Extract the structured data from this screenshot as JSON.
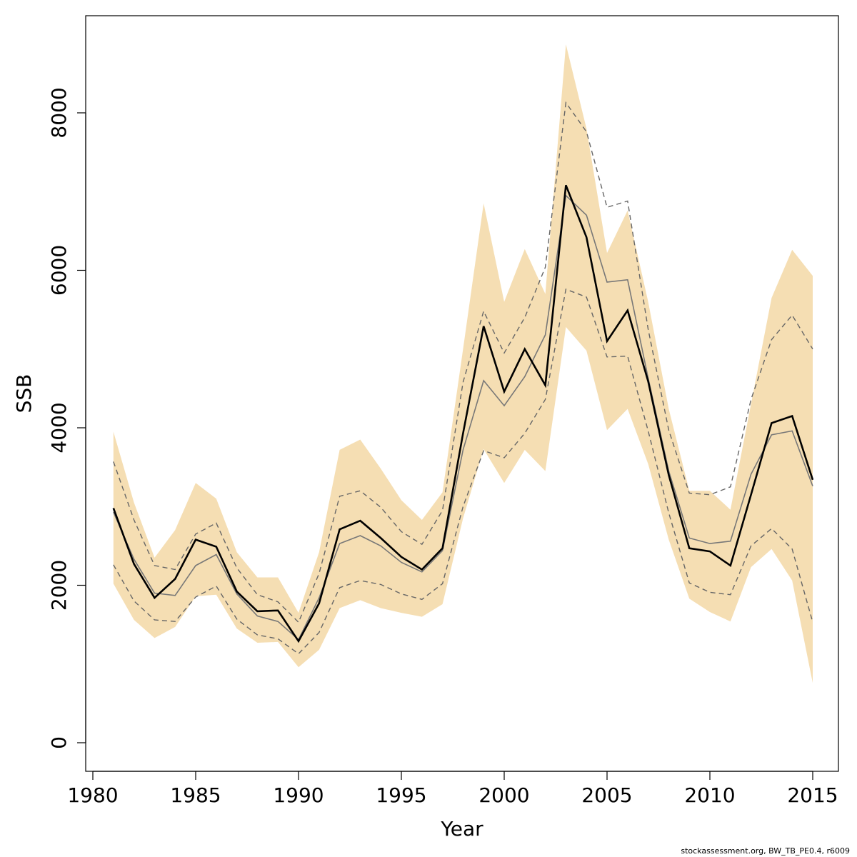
{
  "chart_data": {
    "type": "line",
    "xlabel": "Year",
    "ylabel": "SSB",
    "xlim": [
      1980,
      2015
    ],
    "ylim": [
      0,
      8000
    ],
    "x_ticks": [
      1980,
      1985,
      1990,
      1995,
      2000,
      2005,
      2010,
      2015
    ],
    "y_ticks": [
      0,
      2000,
      4000,
      6000,
      8000
    ],
    "x": [
      1981,
      1982,
      1983,
      1984,
      1985,
      1986,
      1987,
      1988,
      1989,
      1990,
      1991,
      1992,
      1993,
      1994,
      1995,
      1996,
      1997,
      1998,
      1999,
      2000,
      2001,
      2002,
      2003,
      2004,
      2005,
      2006,
      2007,
      2008,
      2009,
      2010,
      2011,
      2012,
      2013,
      2014,
      2015
    ],
    "band": {
      "color": "#f5deb3",
      "upper": [
        3950,
        3050,
        2350,
        2700,
        3300,
        3100,
        2420,
        2100,
        2100,
        1650,
        2420,
        3720,
        3850,
        3480,
        3080,
        2830,
        3180,
        5000,
        6850,
        5600,
        6270,
        5700,
        8870,
        7800,
        6220,
        6760,
        5600,
        4240,
        3200,
        3200,
        2960,
        4300,
        5650,
        6260,
        5930
      ],
      "lower": [
        2020,
        1560,
        1330,
        1470,
        1860,
        1880,
        1450,
        1270,
        1280,
        960,
        1180,
        1710,
        1810,
        1710,
        1650,
        1600,
        1760,
        2850,
        3730,
        3300,
        3720,
        3450,
        5280,
        4980,
        3970,
        4240,
        3540,
        2580,
        1830,
        1660,
        1540,
        2230,
        2460,
        2060,
        760
      ]
    },
    "series": [
      {
        "color": "#000000",
        "style": "solid",
        "values": [
          2980,
          2270,
          1840,
          2080,
          2580,
          2490,
          1920,
          1670,
          1680,
          1290,
          1770,
          2710,
          2820,
          2600,
          2360,
          2200,
          2470,
          3930,
          5290,
          4460,
          5000,
          4540,
          7080,
          6420,
          5100,
          5490,
          4590,
          3400,
          2470,
          2430,
          2250,
          3150,
          4060,
          4150,
          3340
        ]
      },
      {
        "color": "#777777",
        "style": "solid",
        "values": [
          2930,
          2330,
          1900,
          1870,
          2250,
          2390,
          1890,
          1610,
          1540,
          1310,
          1840,
          2530,
          2630,
          2500,
          2290,
          2170,
          2440,
          3720,
          4600,
          4280,
          4650,
          5180,
          6950,
          6700,
          5850,
          5880,
          4630,
          3450,
          2600,
          2530,
          2560,
          3410,
          3910,
          3960,
          3260
        ]
      },
      {
        "color": "#666666",
        "style": "dashed",
        "values": [
          3570,
          2830,
          2250,
          2200,
          2650,
          2790,
          2220,
          1880,
          1790,
          1530,
          2150,
          3130,
          3200,
          2990,
          2680,
          2520,
          2950,
          4580,
          5480,
          4950,
          5400,
          6040,
          8130,
          7760,
          6800,
          6880,
          5250,
          3970,
          3170,
          3150,
          3250,
          4360,
          5120,
          5430,
          5000
        ]
      },
      {
        "color": "#666666",
        "style": "dashed",
        "values": [
          2260,
          1800,
          1560,
          1540,
          1850,
          1990,
          1570,
          1370,
          1320,
          1130,
          1400,
          1970,
          2060,
          2010,
          1890,
          1820,
          2020,
          3000,
          3710,
          3620,
          3930,
          4360,
          5760,
          5660,
          4900,
          4910,
          3960,
          2920,
          2030,
          1910,
          1880,
          2500,
          2720,
          2460,
          1530
        ]
      }
    ]
  },
  "footer": "stockassessment.org, BW_TB_PE0.4, r6009"
}
